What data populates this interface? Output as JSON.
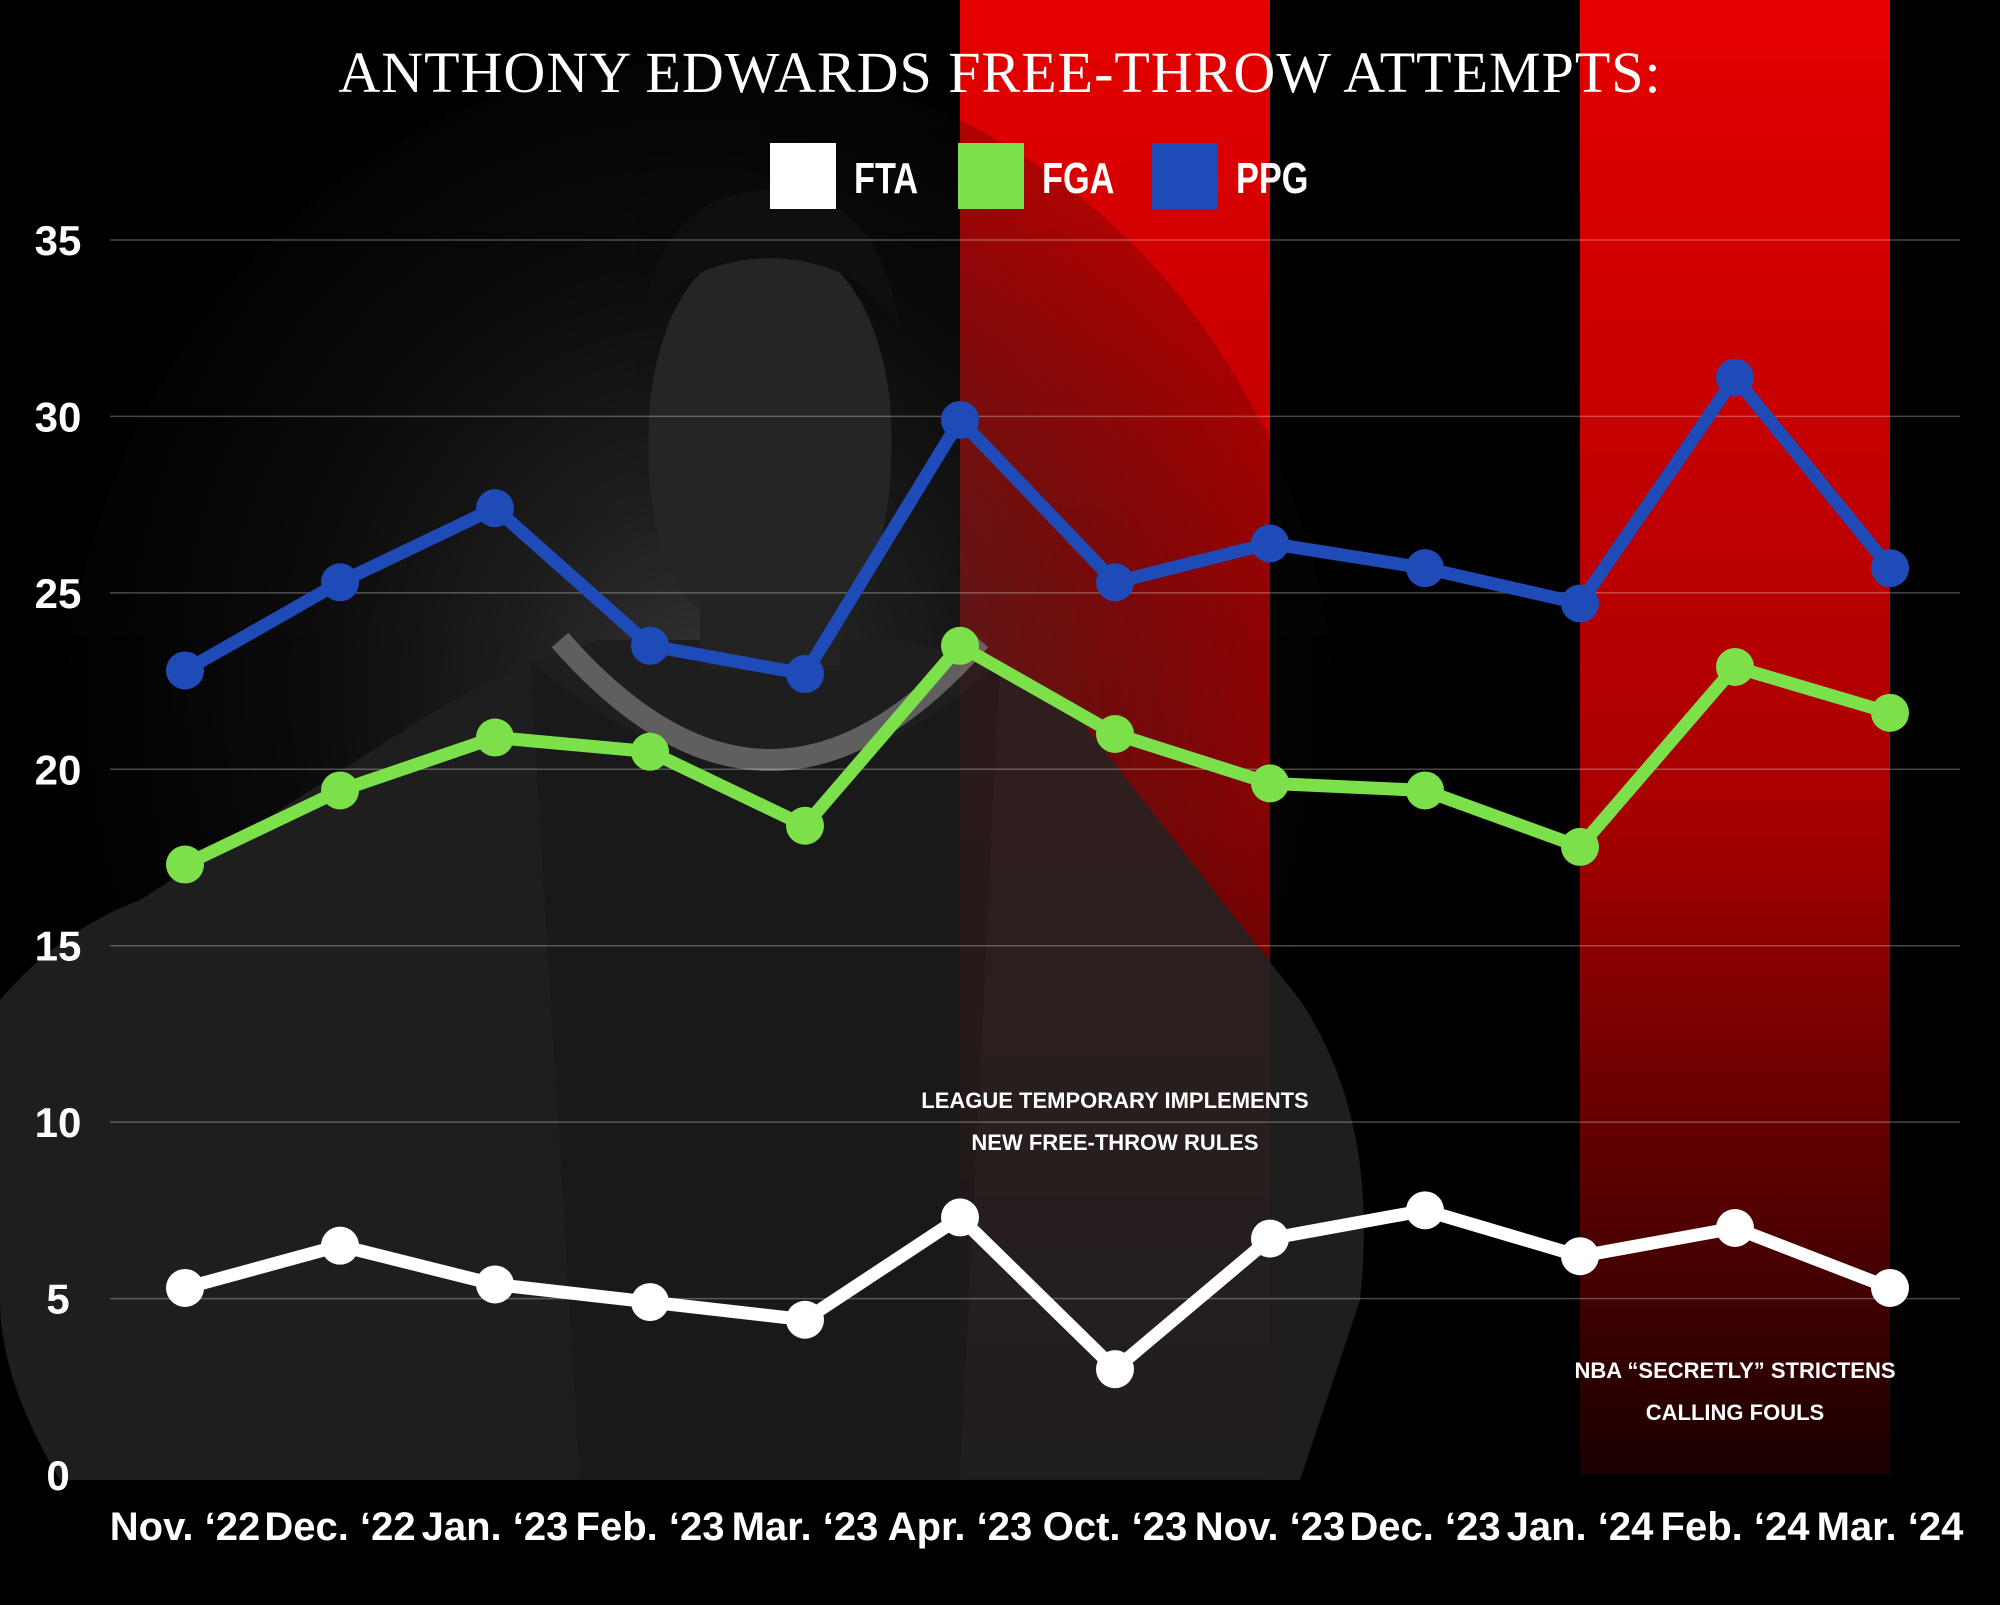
{
  "chart_data": {
    "type": "line",
    "title": "ANTHONY EDWARDS FREE-THROW ATTEMPTS:",
    "categories": [
      "Nov. ‘22",
      "Dec. ‘22",
      "Jan. ‘23",
      "Feb. ‘23",
      "Mar. ‘23",
      "Apr. ‘23",
      "Oct. ‘23",
      "Nov. ‘23",
      "Dec. ‘23",
      "Jan. ‘24",
      "Feb. ‘24",
      "Mar. ‘24"
    ],
    "series": [
      {
        "name": "FTA",
        "color": "#ffffff",
        "values": [
          5.3,
          6.5,
          5.4,
          4.9,
          4.4,
          7.3,
          3.0,
          6.7,
          7.5,
          6.2,
          7.0,
          5.3
        ]
      },
      {
        "name": "FGA",
        "color": "#7be04a",
        "values": [
          17.3,
          19.4,
          20.9,
          20.5,
          18.4,
          23.5,
          21.0,
          19.6,
          19.4,
          17.8,
          22.9,
          21.6
        ]
      },
      {
        "name": "PPG",
        "color": "#1f4bb8",
        "values": [
          22.8,
          25.3,
          27.4,
          23.5,
          22.7,
          29.9,
          25.3,
          26.4,
          25.7,
          24.7,
          31.1,
          25.7
        ]
      }
    ],
    "yticks": [
      "0",
      "5",
      "10",
      "15",
      "20",
      "25",
      "30",
      "35"
    ],
    "ylim": [
      0,
      35
    ],
    "grid": true,
    "legend_position": "top-center",
    "highlight_bands": [
      {
        "from": "Apr. ‘23",
        "to": "Nov. ‘23",
        "color": "#e00000"
      },
      {
        "from": "Jan. ‘24",
        "to": "Mar. ‘24",
        "color": "#e00000"
      }
    ],
    "annotations": [
      {
        "lines": [
          "LEAGUE TEMPORARY IMPLEMENTS",
          "NEW FREE-THROW RULES"
        ],
        "band": 0
      },
      {
        "lines": [
          "NBA “SECRETLY” STRICTENS",
          "CALLING FOULS"
        ],
        "band": 1
      }
    ]
  }
}
